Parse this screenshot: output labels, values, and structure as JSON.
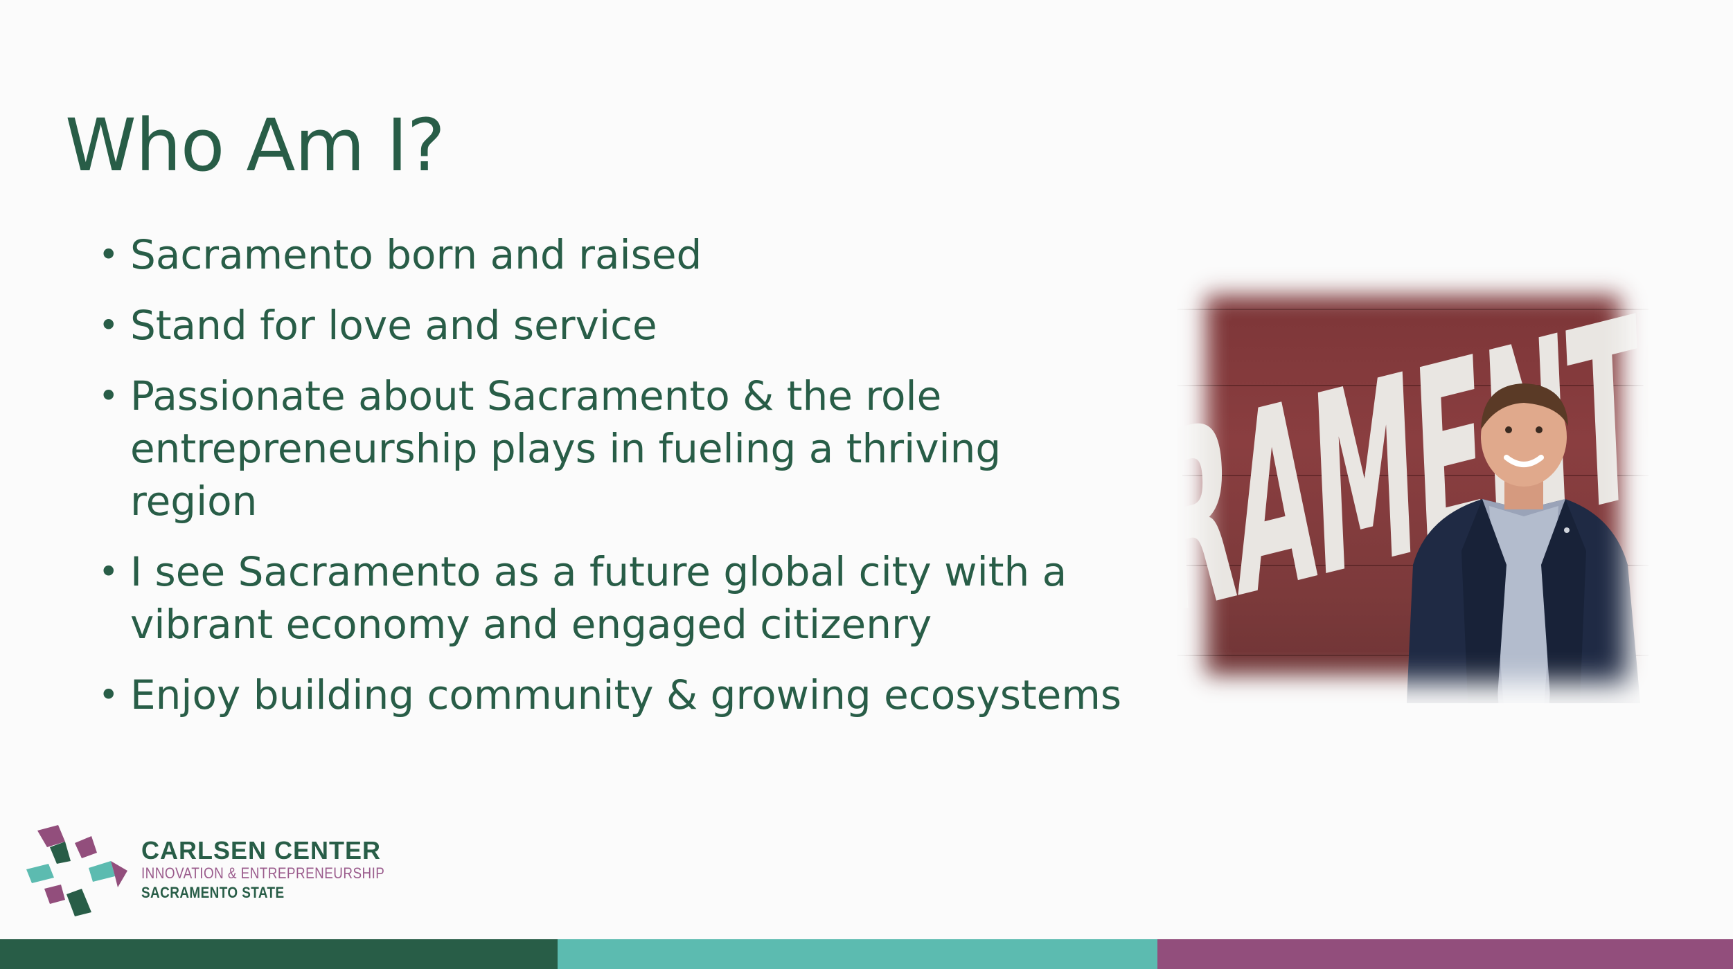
{
  "slide": {
    "title": "Who Am I?",
    "bullets": [
      "Sacramento born and raised",
      "Stand for love and service",
      "Passionate about Sacramento & the role entrepreneurship plays in fueling a thriving region",
      "I see Sacramento as a future global city with a vibrant economy and engaged citizenry",
      "Enjoy building community & growing ecosystems"
    ],
    "bullet_glyph": "•"
  },
  "photo": {
    "sign_text": "RAMENTO"
  },
  "logo": {
    "title": "CARLSEN CENTER",
    "subtitle": "INNOVATION & ENTREPRENEURSHIP",
    "institution": "SACRAMENTO STATE"
  },
  "colors": {
    "primary_green": "#285d47",
    "teal": "#5cbbb0",
    "purple": "#924e7c"
  }
}
